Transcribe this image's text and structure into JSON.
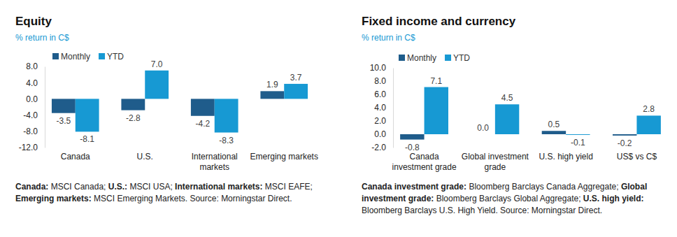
{
  "chart_data": [
    {
      "type": "bar",
      "title": "Equity",
      "subtitle": "% return in C$",
      "categories": [
        "Canada",
        "U.S.",
        "International markets",
        "Emerging markets"
      ],
      "series": [
        {
          "name": "Monthly",
          "color": "#1f5c8b",
          "values": [
            -3.5,
            -2.8,
            -4.2,
            1.9
          ],
          "value_labels": [
            "-3.5",
            "-2.8",
            "-4.2",
            "1.9"
          ]
        },
        {
          "name": "YTD",
          "color": "#1799d3",
          "values": [
            -8.1,
            7.0,
            -8.3,
            3.7
          ],
          "value_labels": [
            "-8.1",
            "7.0",
            "-8.3",
            "3.7"
          ]
        }
      ],
      "ylim": [
        -12,
        8
      ],
      "yticks": [
        {
          "value": 8,
          "label": "8.0"
        },
        {
          "value": 4,
          "label": "4.0"
        },
        {
          "value": 0,
          "label": "0.0"
        },
        {
          "value": -4,
          "label": "-4.0"
        },
        {
          "value": -8,
          "label": "-8.0"
        },
        {
          "value": -12,
          "label": "-12.0"
        }
      ],
      "data_labels": true,
      "legend": "top-left",
      "grid": false,
      "notes": [
        {
          "label": "Canada:",
          "text": "MSCI Canada;"
        },
        {
          "label": "U.S.:",
          "text": "MSCI USA;"
        },
        {
          "label": "International markets:",
          "text": "MSCI EAFE;"
        },
        {
          "label": "Emerging markets:",
          "text": "MSCI Emerging Markets."
        }
      ],
      "source": "Source: Morningstar Direct."
    },
    {
      "type": "bar",
      "title": "Fixed income and currency",
      "subtitle": "% return in C$",
      "categories": [
        "Canada investment grade",
        "Global investment grade",
        "U.S. high yield",
        "US$ vs C$"
      ],
      "series": [
        {
          "name": "Monthly",
          "color": "#1f5c8b",
          "values": [
            -0.8,
            0.0,
            0.5,
            -0.2
          ],
          "value_labels": [
            "-0.8",
            "0.0",
            "0.5",
            "-0.2"
          ]
        },
        {
          "name": "YTD",
          "color": "#1799d3",
          "values": [
            7.1,
            4.5,
            -0.1,
            2.8
          ],
          "value_labels": [
            "7.1",
            "4.5",
            "-0.1",
            "2.8"
          ]
        }
      ],
      "ylim": [
        -2,
        10
      ],
      "yticks": [
        {
          "value": 10,
          "label": "10.0"
        },
        {
          "value": 8,
          "label": "8.0"
        },
        {
          "value": 6,
          "label": "6.0"
        },
        {
          "value": 4,
          "label": "4.0"
        },
        {
          "value": 2,
          "label": "2.0"
        },
        {
          "value": 0,
          "label": "0.0"
        },
        {
          "value": -2,
          "label": "-2.0"
        }
      ],
      "data_labels": true,
      "legend": "top-left",
      "grid": false,
      "notes": [
        {
          "label": "Canada investment grade:",
          "text": "Bloomberg Barclays Canada Aggregate;"
        },
        {
          "label": "Global investment grade:",
          "text": "Bloomberg Barclays Global Aggregate;"
        },
        {
          "label": "U.S. high yield:",
          "text": "Bloomberg Barclays U.S. High Yield."
        }
      ],
      "source": "Source: Morningstar Direct."
    }
  ]
}
